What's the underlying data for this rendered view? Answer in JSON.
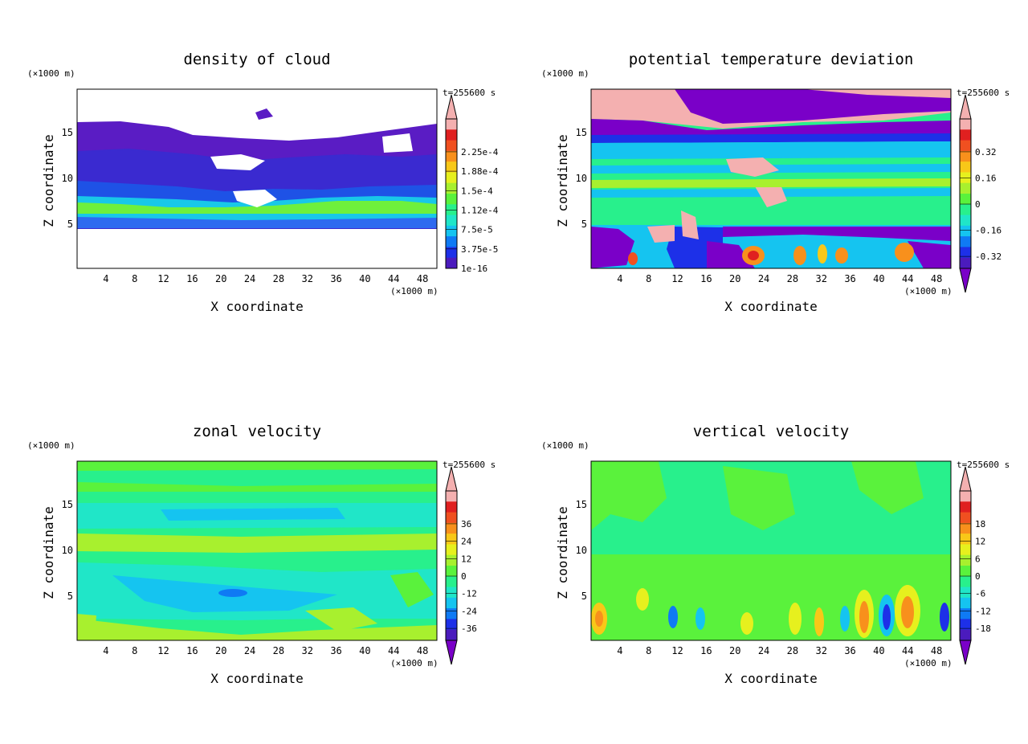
{
  "panels": [
    {
      "title": "density of cloud",
      "time_label": "t=255600 s",
      "z_unit": "(×1000 m)",
      "x_unit": "(×1000 m)",
      "xlabel": "X coordinate",
      "ylabel": "Z coordinate",
      "x_ticks": [
        "4",
        "8",
        "12",
        "16",
        "20",
        "24",
        "28",
        "32",
        "36",
        "40",
        "44",
        "48"
      ],
      "y_ticks": [
        "5",
        "10",
        "15"
      ],
      "colorbar_labels": [
        "2.25e-4",
        "1.88e-4",
        "1.5e-4",
        "1.12e-4",
        "7.5e-5",
        "3.75e-5",
        "1e-16"
      ]
    },
    {
      "title": "potential temperature deviation",
      "time_label": "t=255600 s",
      "z_unit": "(×1000 m)",
      "x_unit": "(×1000 m)",
      "xlabel": "X coordinate",
      "ylabel": "Z coordinate",
      "x_ticks": [
        "4",
        "8",
        "12",
        "16",
        "20",
        "24",
        "28",
        "32",
        "36",
        "40",
        "44",
        "48"
      ],
      "y_ticks": [
        "5",
        "10",
        "15"
      ],
      "colorbar_labels": [
        "0.32",
        "0.16",
        "0",
        "-0.16",
        "-0.32"
      ]
    },
    {
      "title": "zonal velocity",
      "time_label": "t=255600 s",
      "z_unit": "(×1000 m)",
      "x_unit": "(×1000 m)",
      "xlabel": "X coordinate",
      "ylabel": "Z coordinate",
      "x_ticks": [
        "4",
        "8",
        "12",
        "16",
        "20",
        "24",
        "28",
        "32",
        "36",
        "40",
        "44",
        "48"
      ],
      "y_ticks": [
        "5",
        "10",
        "15"
      ],
      "colorbar_labels": [
        "36",
        "24",
        "12",
        "0",
        "-12",
        "-24",
        "-36"
      ]
    },
    {
      "title": "vertical velocity",
      "time_label": "t=255600 s",
      "z_unit": "(×1000 m)",
      "x_unit": "(×1000 m)",
      "xlabel": "X coordinate",
      "ylabel": "Z coordinate",
      "x_ticks": [
        "4",
        "8",
        "12",
        "16",
        "20",
        "24",
        "28",
        "32",
        "36",
        "40",
        "44",
        "48"
      ],
      "y_ticks": [
        "5",
        "10",
        "15"
      ],
      "colorbar_labels": [
        "18",
        "12",
        "6",
        "0",
        "-6",
        "-12",
        "-18"
      ]
    }
  ],
  "colors": {
    "palette": [
      "#7a00c8",
      "#4b1bbd",
      "#1d30e8",
      "#0f7af4",
      "#15c4f0",
      "#20e6c8",
      "#28f08c",
      "#5af23c",
      "#a8f02e",
      "#e6f01e",
      "#f8c818",
      "#f8901c",
      "#f05020",
      "#e02020",
      "#f4b0b0"
    ]
  },
  "chart_data": [
    {
      "type": "heatmap",
      "title": "density of cloud",
      "xlabel": "X coordinate",
      "ylabel": "Z coordinate",
      "x_unit": "(×1000 m)",
      "y_unit": "(×1000 m)",
      "xlim": [
        0,
        50
      ],
      "ylim": [
        0,
        19.5
      ],
      "x_ticks": [
        4,
        8,
        12,
        16,
        20,
        24,
        28,
        32,
        36,
        40,
        44,
        48
      ],
      "y_ticks": [
        5,
        10,
        15
      ],
      "time": "t=255600 s",
      "colorbar_levels": [
        "2.25e-4",
        "1.88e-4",
        "1.5e-4",
        "1.12e-4",
        "7.5e-5",
        "3.75e-5",
        "1e-16"
      ],
      "colorbar_extend": "max",
      "pattern": [
        {
          "z": [
            4.8,
            6.0
          ],
          "level": "7.5e-5 to 1.5e-4"
        },
        {
          "z": [
            6.0,
            8.5
          ],
          "level": "1.12e-4 to 1.88e-4"
        },
        {
          "z": [
            8.5,
            13.0
          ],
          "level": "3.75e-5 to 7.5e-5"
        },
        {
          "z": [
            13.0,
            16.2
          ],
          "level": "1e-16 to 3.75e-5"
        }
      ]
    },
    {
      "type": "heatmap",
      "title": "potential temperature deviation",
      "xlabel": "X coordinate",
      "ylabel": "Z coordinate",
      "x_unit": "(×1000 m)",
      "y_unit": "(×1000 m)",
      "xlim": [
        0,
        50
      ],
      "ylim": [
        0,
        19.5
      ],
      "x_ticks": [
        4,
        8,
        12,
        16,
        20,
        24,
        28,
        32,
        36,
        40,
        44,
        48
      ],
      "y_ticks": [
        5,
        10,
        15
      ],
      "time": "t=255600 s",
      "colorbar_levels": [
        "0.32",
        "0.16",
        "0",
        "-0.16",
        "-0.32"
      ],
      "colorbar_extend": "both"
    },
    {
      "type": "heatmap",
      "title": "zonal velocity",
      "xlabel": "X coordinate",
      "ylabel": "Z coordinate",
      "x_unit": "(×1000 m)",
      "y_unit": "(×1000 m)",
      "xlim": [
        0,
        50
      ],
      "ylim": [
        0,
        19.5
      ],
      "x_ticks": [
        4,
        8,
        12,
        16,
        20,
        24,
        28,
        32,
        36,
        40,
        44,
        48
      ],
      "y_ticks": [
        5,
        10,
        15
      ],
      "time": "t=255600 s",
      "colorbar_levels": [
        "36",
        "24",
        "12",
        "0",
        "-12",
        "-24",
        "-36"
      ],
      "colorbar_extend": "both"
    },
    {
      "type": "heatmap",
      "title": "vertical velocity",
      "xlabel": "X coordinate",
      "ylabel": "Z coordinate",
      "x_unit": "(×1000 m)",
      "y_unit": "(×1000 m)",
      "xlim": [
        0,
        50
      ],
      "ylim": [
        0,
        19.5
      ],
      "x_ticks": [
        4,
        8,
        12,
        16,
        20,
        24,
        28,
        32,
        36,
        40,
        44,
        48
      ],
      "y_ticks": [
        5,
        10,
        15
      ],
      "time": "t=255600 s",
      "colorbar_levels": [
        "18",
        "12",
        "6",
        "0",
        "-6",
        "-12",
        "-18"
      ],
      "colorbar_extend": "both"
    }
  ]
}
